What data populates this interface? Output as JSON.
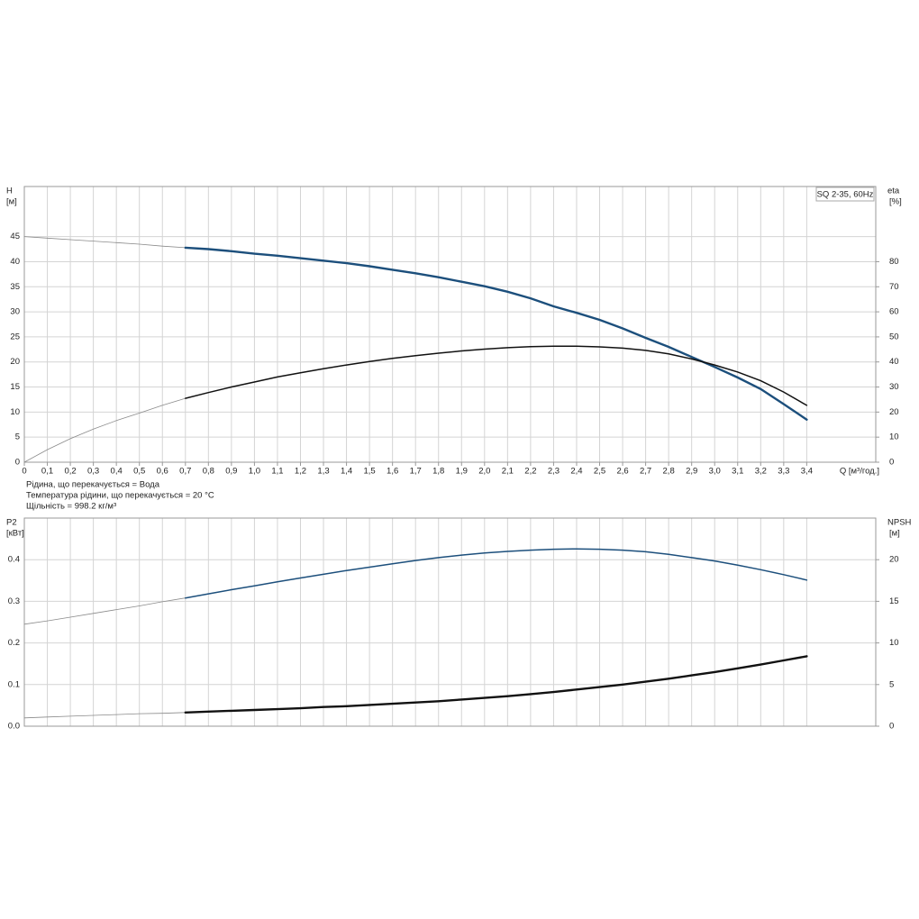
{
  "chart_data": [
    {
      "type": "line",
      "label": "SQ 2-35, 60Hz",
      "ylabel": "H",
      "yunit": "[м]",
      "y2label": "eta",
      "y2unit": "[%]",
      "xlabel": "Q [м³/год.]",
      "annotations": [
        "Рідина, що перекачується = Вода",
        "Температура рідини, що перекачується = 20 °C",
        "Щільність = 998.2 кг/м³"
      ],
      "grid": true,
      "xlim": [
        0,
        3.7
      ],
      "ylim": [
        0,
        55
      ],
      "y2lim": [
        0,
        110
      ],
      "xticks": [
        0,
        {
          "value": 0.1,
          "label": "0,1"
        },
        {
          "value": 0.2,
          "label": "0,2"
        },
        {
          "value": 0.3,
          "label": "0,3"
        },
        {
          "value": 0.4,
          "label": "0,4"
        },
        {
          "value": 0.5,
          "label": "0,5"
        },
        {
          "value": 0.6,
          "label": "0,6"
        },
        {
          "value": 0.7,
          "label": "0,7"
        },
        {
          "value": 0.8,
          "label": "0,8"
        },
        {
          "value": 0.9,
          "label": "0,9"
        },
        {
          "value": 1.0,
          "label": "1,0"
        },
        {
          "value": 1.1,
          "label": "1,1"
        },
        {
          "value": 1.2,
          "label": "1,2"
        },
        {
          "value": 1.3,
          "label": "1,3"
        },
        {
          "value": 1.4,
          "label": "1,4"
        },
        {
          "value": 1.5,
          "label": "1,5"
        },
        {
          "value": 1.6,
          "label": "1,6"
        },
        {
          "value": 1.7,
          "label": "1,7"
        },
        {
          "value": 1.8,
          "label": "1,8"
        },
        {
          "value": 1.9,
          "label": "1,9"
        },
        {
          "value": 2.0,
          "label": "2,0"
        },
        {
          "value": 2.1,
          "label": "2,1"
        },
        {
          "value": 2.2,
          "label": "2,2"
        },
        {
          "value": 2.3,
          "label": "2,3"
        },
        {
          "value": 2.4,
          "label": "2,4"
        },
        {
          "value": 2.5,
          "label": "2,5"
        },
        {
          "value": 2.6,
          "label": "2,6"
        },
        {
          "value": 2.7,
          "label": "2,7"
        },
        {
          "value": 2.8,
          "label": "2,8"
        },
        {
          "value": 2.9,
          "label": "2,9"
        },
        {
          "value": 3.0,
          "label": "3,0"
        },
        {
          "value": 3.1,
          "label": "3,1"
        },
        {
          "value": 3.2,
          "label": "3,2"
        },
        {
          "value": 3.3,
          "label": "3,3"
        },
        {
          "value": 3.4,
          "label": "3,4"
        }
      ],
      "yticks": [
        0,
        5,
        10,
        15,
        20,
        25,
        30,
        35,
        40,
        45
      ],
      "y2ticks": [
        0,
        10,
        20,
        30,
        40,
        50,
        60,
        70,
        80
      ],
      "x": [
        0,
        0.1,
        0.2,
        0.3,
        0.4,
        0.5,
        0.6,
        0.7,
        0.8,
        0.9,
        1.0,
        1.1,
        1.2,
        1.3,
        1.4,
        1.5,
        1.6,
        1.7,
        1.8,
        1.9,
        2.0,
        2.1,
        2.2,
        2.3,
        2.4,
        2.5,
        2.6,
        2.7,
        2.8,
        2.9,
        3.0,
        3.1,
        3.2,
        3.3,
        3.4
      ],
      "series": [
        {
          "color": "#8a8a8a",
          "width": 0.8,
          "values": [
            45,
            44.7,
            44.4,
            44.1,
            43.8,
            43.5,
            43.1,
            42.8,
            null,
            null,
            null,
            null,
            null,
            null,
            null,
            null,
            null,
            null,
            null,
            null,
            null,
            null,
            null,
            null,
            null,
            null,
            null,
            null,
            null,
            null,
            null,
            null,
            null,
            null,
            null
          ]
        },
        {
          "color": "#1c4f7c",
          "width": 2.4,
          "values": [
            null,
            null,
            null,
            null,
            null,
            null,
            null,
            42.8,
            42.5,
            42.1,
            41.6,
            41.2,
            40.7,
            40.2,
            39.7,
            39.1,
            38.4,
            37.7,
            36.9,
            36.0,
            35.1,
            34.0,
            32.7,
            31.1,
            29.8,
            28.4,
            26.7,
            24.8,
            23.0,
            21.0,
            19.0,
            16.9,
            14.6,
            11.6,
            8.5
          ]
        },
        {
          "color": "#8a8a8a",
          "width": 0.8,
          "axis": "y2",
          "values": [
            0,
            5.0,
            9.4,
            13.2,
            16.6,
            19.6,
            22.7,
            25.5,
            null,
            null,
            null,
            null,
            null,
            null,
            null,
            null,
            null,
            null,
            null,
            null,
            null,
            null,
            null,
            null,
            null,
            null,
            null,
            null,
            null,
            null,
            null,
            null,
            null,
            null,
            null
          ]
        },
        {
          "color": "#111111",
          "width": 1.5,
          "axis": "y2",
          "values": [
            null,
            null,
            null,
            null,
            null,
            null,
            null,
            25.5,
            27.8,
            30.0,
            32.0,
            34.0,
            35.7,
            37.3,
            38.8,
            40.2,
            41.4,
            42.5,
            43.5,
            44.4,
            45.1,
            45.7,
            46.1,
            46.3,
            46.3,
            46.0,
            45.5,
            44.6,
            43.2,
            41.2,
            38.8,
            36.0,
            32.5,
            28.0,
            22.7
          ]
        }
      ]
    },
    {
      "type": "line",
      "ylabel": "P2",
      "yunit": "[кВт]",
      "y2label": "NPSH",
      "y2unit": "[м]",
      "grid": true,
      "xlim": [
        0,
        3.7
      ],
      "ylim": [
        0,
        0.5
      ],
      "y2lim": [
        0,
        25
      ],
      "yticks": [
        {
          "value": 0,
          "label": "0.0"
        },
        0.1,
        0.2,
        0.3,
        0.4
      ],
      "y2ticks": [
        0,
        5,
        10,
        15,
        20
      ],
      "x": [
        0,
        0.1,
        0.2,
        0.3,
        0.4,
        0.5,
        0.6,
        0.7,
        0.8,
        0.9,
        1.0,
        1.1,
        1.2,
        1.3,
        1.4,
        1.5,
        1.6,
        1.7,
        1.8,
        1.9,
        2.0,
        2.1,
        2.2,
        2.3,
        2.4,
        2.5,
        2.6,
        2.7,
        2.8,
        2.9,
        3.0,
        3.1,
        3.2,
        3.3,
        3.4
      ],
      "series": [
        {
          "color": "#8a8a8a",
          "width": 0.8,
          "values": [
            0.245,
            0.253,
            0.262,
            0.271,
            0.28,
            0.289,
            0.299,
            0.308,
            null,
            null,
            null,
            null,
            null,
            null,
            null,
            null,
            null,
            null,
            null,
            null,
            null,
            null,
            null,
            null,
            null,
            null,
            null,
            null,
            null,
            null,
            null,
            null,
            null,
            null,
            null
          ]
        },
        {
          "color": "#1c4f7c",
          "width": 1.5,
          "values": [
            null,
            null,
            null,
            null,
            null,
            null,
            null,
            0.308,
            0.318,
            0.328,
            0.337,
            0.347,
            0.356,
            0.365,
            0.374,
            0.382,
            0.39,
            0.398,
            0.405,
            0.411,
            0.416,
            0.42,
            0.423,
            0.425,
            0.426,
            0.425,
            0.423,
            0.419,
            0.413,
            0.405,
            0.397,
            0.387,
            0.376,
            0.364,
            0.351
          ]
        },
        {
          "color": "#8a8a8a",
          "width": 0.8,
          "axis": "y2",
          "values": [
            1.0,
            1.1,
            1.2,
            1.3,
            1.4,
            1.5,
            1.55,
            1.65,
            null,
            null,
            null,
            null,
            null,
            null,
            null,
            null,
            null,
            null,
            null,
            null,
            null,
            null,
            null,
            null,
            null,
            null,
            null,
            null,
            null,
            null,
            null,
            null,
            null,
            null,
            null
          ]
        },
        {
          "color": "#111111",
          "width": 2.4,
          "axis": "y2",
          "values": [
            null,
            null,
            null,
            null,
            null,
            null,
            null,
            1.65,
            1.75,
            1.85,
            1.95,
            2.05,
            2.15,
            2.3,
            2.4,
            2.55,
            2.7,
            2.85,
            3.0,
            3.2,
            3.4,
            3.6,
            3.85,
            4.1,
            4.4,
            4.7,
            5.0,
            5.35,
            5.7,
            6.1,
            6.5,
            6.95,
            7.4,
            7.9,
            8.4
          ]
        }
      ]
    }
  ]
}
